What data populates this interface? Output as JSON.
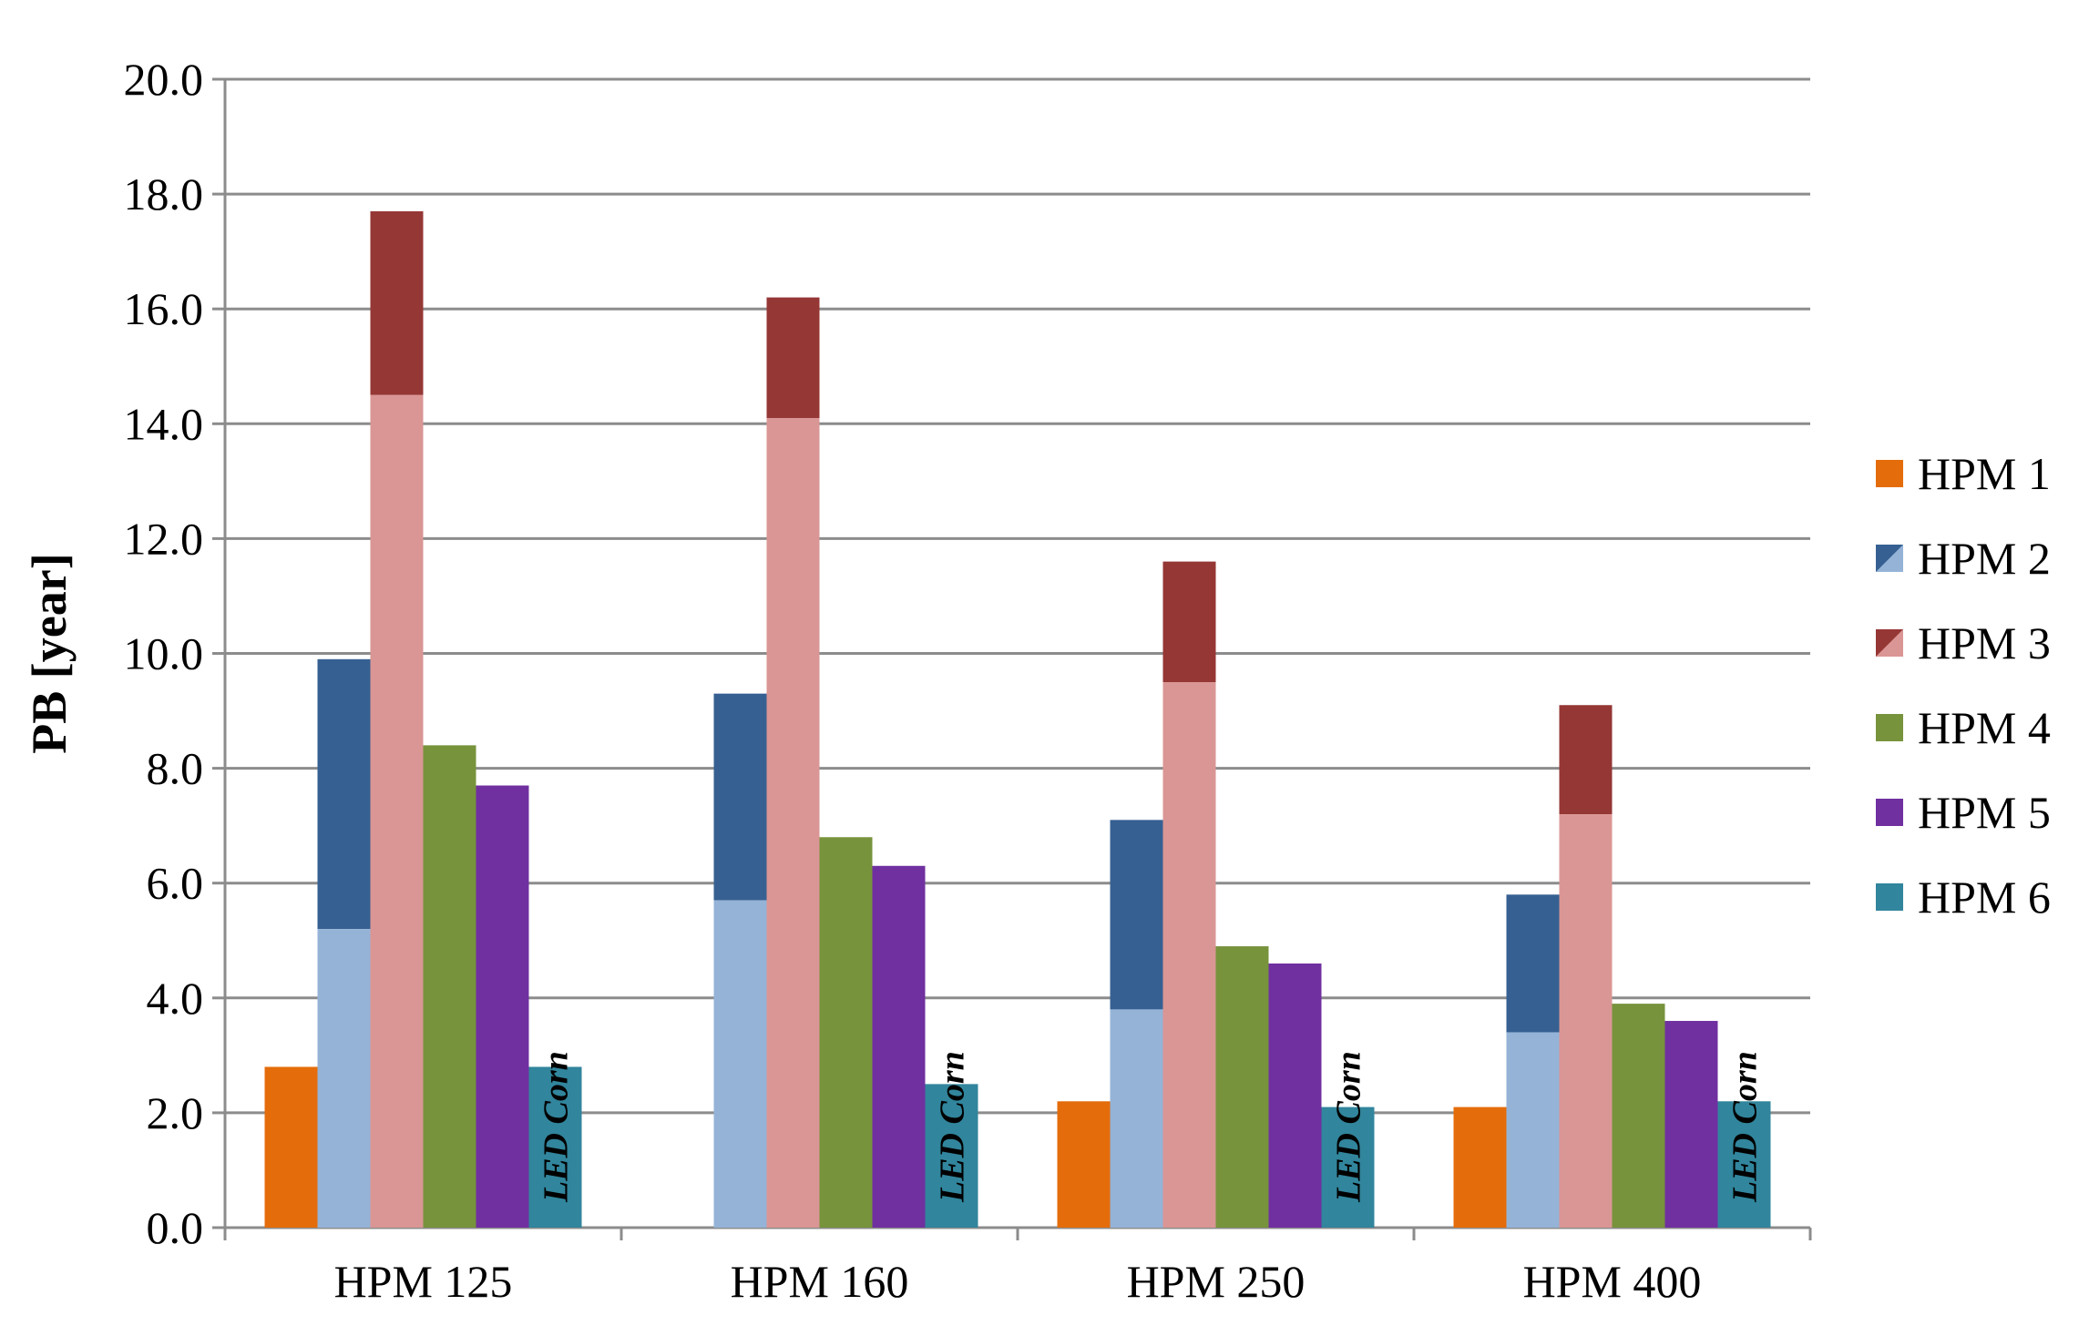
{
  "chart_data": {
    "type": "bar",
    "ylabel": "PB [year]",
    "ylim": [
      0,
      20
    ],
    "yticks": [
      "0.0",
      "2.0",
      "4.0",
      "6.0",
      "8.0",
      "10.0",
      "12.0",
      "14.0",
      "16.0",
      "18.0",
      "20.0"
    ],
    "grid": true,
    "legend_position": "right",
    "categories": [
      "HPM 125",
      "HPM 160",
      "HPM 250",
      "HPM 400"
    ],
    "series": [
      {
        "name": "HPM 1",
        "values": [
          2.8,
          null,
          2.2,
          2.1
        ],
        "color": "#E46C0A"
      },
      {
        "name": "HPM 2",
        "values_low": [
          5.2,
          5.7,
          3.8,
          3.4
        ],
        "values_high": [
          9.9,
          9.3,
          7.1,
          5.8
        ],
        "color_low": "#95B3D7",
        "color_high": "#366092"
      },
      {
        "name": "HPM 3",
        "values_low": [
          14.5,
          14.1,
          9.5,
          7.2
        ],
        "values_high": [
          17.7,
          16.2,
          11.6,
          9.1
        ],
        "color_low": "#DA9694",
        "color_high": "#953735"
      },
      {
        "name": "HPM 4",
        "values": [
          8.4,
          6.8,
          4.9,
          3.9
        ],
        "color": "#77933C"
      },
      {
        "name": "HPM 5",
        "values": [
          7.7,
          6.3,
          4.6,
          3.6
        ],
        "color": "#7030A0"
      },
      {
        "name": "HPM 6",
        "values": [
          2.8,
          2.5,
          2.1,
          2.2
        ],
        "color": "#31859C"
      }
    ],
    "annotations": [
      {
        "series": "HPM 6",
        "text": "LED Corn"
      }
    ]
  }
}
